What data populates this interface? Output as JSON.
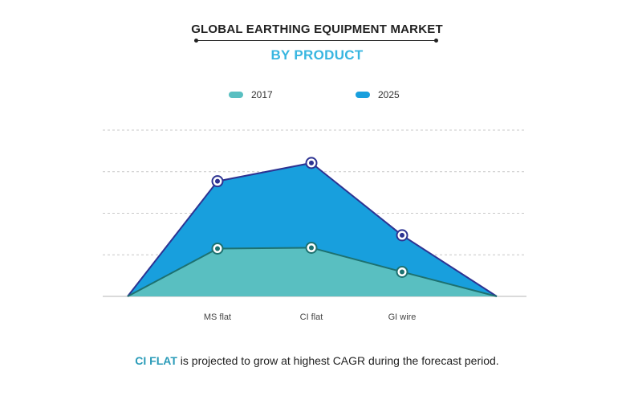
{
  "title": "GLOBAL EARTHING EQUIPMENT MARKET",
  "subtitle": "BY PRODUCT",
  "colors": {
    "series_2017": "#59bfc1",
    "series_2025": "#189fdd",
    "line_2017": "#1d7170",
    "line_2025": "#2d3392",
    "subtitle": "#38b6e0",
    "highlight": "#2a9bb8"
  },
  "chart_data": {
    "type": "area",
    "categories": [
      "",
      "MS flat",
      "CI flat",
      "GI wire",
      ""
    ],
    "series": [
      {
        "name": "2017",
        "values": [
          0,
          1.15,
          1.17,
          0.59,
          0
        ]
      },
      {
        "name": "2025",
        "values": [
          0,
          2.77,
          3.21,
          1.47,
          0
        ]
      }
    ],
    "ylim": [
      0,
      4
    ],
    "grid": true,
    "legend": "top-center",
    "xlabel": "",
    "ylabel": ""
  },
  "footnote": {
    "highlight": "CI FLAT",
    "text": " is projected to grow at highest CAGR during the forecast period."
  }
}
